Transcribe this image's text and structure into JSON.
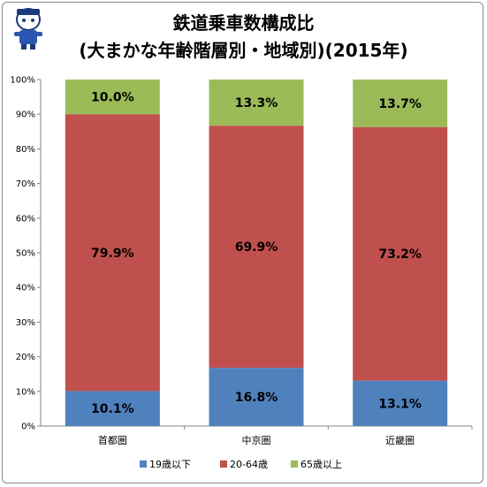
{
  "chart_data": {
    "type": "bar",
    "stacked": true,
    "title": "鉄道乗車数構成比",
    "subtitle": "(大まかな年齢階層別・地域別)(2015年)",
    "categories": [
      "首都圏",
      "中京圏",
      "近畿圏"
    ],
    "series": [
      {
        "name": "19歳以下",
        "color": "#4f81bd",
        "values": [
          10.1,
          16.8,
          13.1
        ],
        "labels": [
          "10.1%",
          "16.8%",
          "13.1%"
        ]
      },
      {
        "name": "20-64歳",
        "color": "#c0504d",
        "values": [
          79.9,
          69.9,
          73.2
        ],
        "labels": [
          "79.9%",
          "69.9%",
          "73.2%"
        ]
      },
      {
        "name": "65歳以上",
        "color": "#9bbb59",
        "values": [
          10.0,
          13.3,
          13.7
        ],
        "labels": [
          "10.0%",
          "13.3%",
          "13.7%"
        ]
      }
    ],
    "yticks": [
      "0%",
      "10%",
      "20%",
      "30%",
      "40%",
      "50%",
      "60%",
      "70%",
      "80%",
      "90%",
      "100%"
    ],
    "ylim": [
      0,
      100
    ],
    "grid": false,
    "legend_position": "bottom"
  }
}
